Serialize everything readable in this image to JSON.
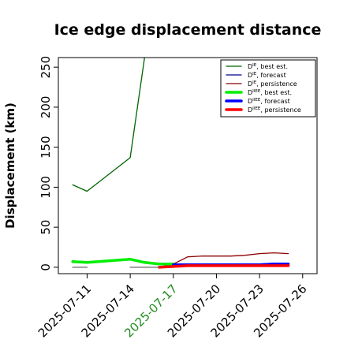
{
  "chart_data": {
    "type": "line",
    "title": "Ice edge displacement distance",
    "xlabel": "",
    "ylabel": "Displacement (km)",
    "xlim": [
      "2025-07-09",
      "2025-07-27"
    ],
    "ylim": [
      -8,
      262
    ],
    "yticks": [
      0,
      50,
      100,
      150,
      200,
      250
    ],
    "xticks": [
      {
        "date": "2025-07-11",
        "label": "2025-07-11",
        "color": "#000000"
      },
      {
        "date": "2025-07-14",
        "label": "2025-07-14",
        "color": "#000000"
      },
      {
        "date": "2025-07-17",
        "label": "2025-07-17",
        "color": "#228B22"
      },
      {
        "date": "2025-07-20",
        "label": "2025-07-20",
        "color": "#000000"
      },
      {
        "date": "2025-07-23",
        "label": "2025-07-23",
        "color": "#000000"
      },
      {
        "date": "2025-07-26",
        "label": "2025-07-26",
        "color": "#000000"
      }
    ],
    "grid": false,
    "legend_position": "top-right",
    "series": [
      {
        "name": "D^IE, best est.",
        "color": "#006400",
        "width": 1.3,
        "x": [
          "2025-07-10",
          "2025-07-11",
          "2025-07-14",
          "2025-07-15"
        ],
        "y": [
          103,
          95,
          137,
          262
        ]
      },
      {
        "name": "D^IE, forecast",
        "color": "#00008B",
        "width": 1.3,
        "x": [
          "2025-07-18",
          "2025-07-19",
          "2025-07-20",
          "2025-07-21",
          "2025-07-22",
          "2025-07-23",
          "2025-07-24",
          "2025-07-25"
        ],
        "y": [
          4,
          4,
          3,
          3,
          4,
          4,
          5,
          5
        ]
      },
      {
        "name": "D^IE, persistence",
        "color": "#8B0000",
        "width": 1.3,
        "x": [
          "2025-07-16",
          "2025-07-17",
          "2025-07-18",
          "2025-07-19",
          "2025-07-20",
          "2025-07-21",
          "2025-07-22",
          "2025-07-23",
          "2025-07-24",
          "2025-07-25"
        ],
        "y": [
          0,
          4,
          13,
          14,
          14,
          14,
          15,
          17,
          18,
          17
        ]
      },
      {
        "name": "D^IIEE, best est.",
        "color": "#00EE00",
        "width": 3.5,
        "x": [
          "2025-07-10",
          "2025-07-11",
          "2025-07-14",
          "2025-07-15",
          "2025-07-16",
          "2025-07-17"
        ],
        "y": [
          7,
          6,
          10,
          6,
          4,
          4
        ]
      },
      {
        "name": "D^IIEE, forecast",
        "color": "#0000FF",
        "width": 3.5,
        "x": [
          "2025-07-17",
          "2025-07-18",
          "2025-07-19",
          "2025-07-20",
          "2025-07-21",
          "2025-07-22",
          "2025-07-23",
          "2025-07-24",
          "2025-07-25"
        ],
        "y": [
          3,
          3,
          3,
          3,
          3,
          3,
          3,
          4,
          4
        ]
      },
      {
        "name": "D^IIEE, persistence",
        "color": "#FF0000",
        "width": 3.5,
        "x": [
          "2025-07-16",
          "2025-07-17",
          "2025-07-18",
          "2025-07-19",
          "2025-07-20",
          "2025-07-21",
          "2025-07-22",
          "2025-07-23",
          "2025-07-24",
          "2025-07-25"
        ],
        "y": [
          0,
          1,
          2,
          2,
          2,
          2,
          2,
          2,
          2,
          2
        ]
      },
      {
        "name": "",
        "color": "#808080",
        "width": 1.5,
        "legend": false,
        "x": [
          "2025-07-10",
          "2025-07-11"
        ],
        "y": [
          0,
          0
        ]
      },
      {
        "name": "",
        "color": "#808080",
        "width": 1.5,
        "legend": false,
        "x": [
          "2025-07-14",
          "2025-07-16"
        ],
        "y": [
          0,
          0
        ]
      }
    ],
    "legend": [
      {
        "base": "D",
        "sup": "IE",
        "text": ", best est.",
        "color": "#006400",
        "width": 1.3
      },
      {
        "base": "D",
        "sup": "IE",
        "text": ", forecast",
        "color": "#00008B",
        "width": 1.3
      },
      {
        "base": "D",
        "sup": "IE",
        "text": ", persistence",
        "color": "#8B0000",
        "width": 1.3
      },
      {
        "base": "D",
        "sup": "IIEE",
        "text": ", best est.",
        "color": "#00EE00",
        "width": 3.5
      },
      {
        "base": "D",
        "sup": "IIEE",
        "text": ", forecast",
        "color": "#0000FF",
        "width": 3.5
      },
      {
        "base": "D",
        "sup": "IIEE",
        "text": ", persistence",
        "color": "#FF0000",
        "width": 3.5
      }
    ]
  }
}
